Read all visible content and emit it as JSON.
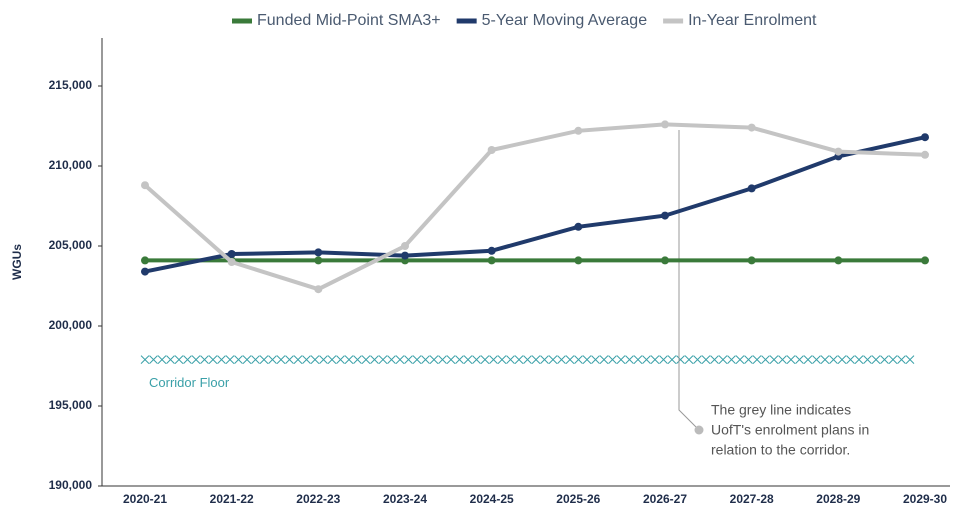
{
  "chart_data": {
    "type": "line",
    "y_label": "WGUs",
    "categories": [
      "2020-21",
      "2021-22",
      "2022-23",
      "2023-24",
      "2024-25",
      "2025-26",
      "2026-27",
      "2027-28",
      "2028-29",
      "2029-30"
    ],
    "series": [
      {
        "name": "Funded Mid-Point SMA3+",
        "color": "#3a7a3a",
        "values": [
          204100,
          204100,
          204100,
          204100,
          204100,
          204100,
          204100,
          204100,
          204100,
          204100
        ]
      },
      {
        "name": "5-Year Moving Average",
        "color": "#203a6b",
        "values": [
          203400,
          204500,
          204600,
          204400,
          204700,
          206200,
          206900,
          208600,
          210600,
          211800
        ]
      },
      {
        "name": "In-Year Enrolment",
        "color": "#c4c4c4",
        "values": [
          208800,
          204000,
          202300,
          205000,
          211000,
          212200,
          212600,
          212400,
          210900,
          210700
        ]
      }
    ],
    "corridor_floor": {
      "label": "Corridor Floor",
      "value": 197900,
      "color": "#3aa0a8"
    },
    "annotation": [
      "The grey line indicates",
      "UofT's enrolment plans in",
      "relation to the corridor."
    ],
    "ylim": [
      190000,
      218000
    ],
    "yticks": [
      {
        "value": 190000,
        "label": "190,000"
      },
      {
        "value": 195000,
        "label": "195,000"
      },
      {
        "value": 200000,
        "label": "200,000"
      },
      {
        "value": 205000,
        "label": "205,000"
      },
      {
        "value": 210000,
        "label": "210,000"
      },
      {
        "value": 215000,
        "label": "215,000"
      }
    ],
    "grid": false
  }
}
